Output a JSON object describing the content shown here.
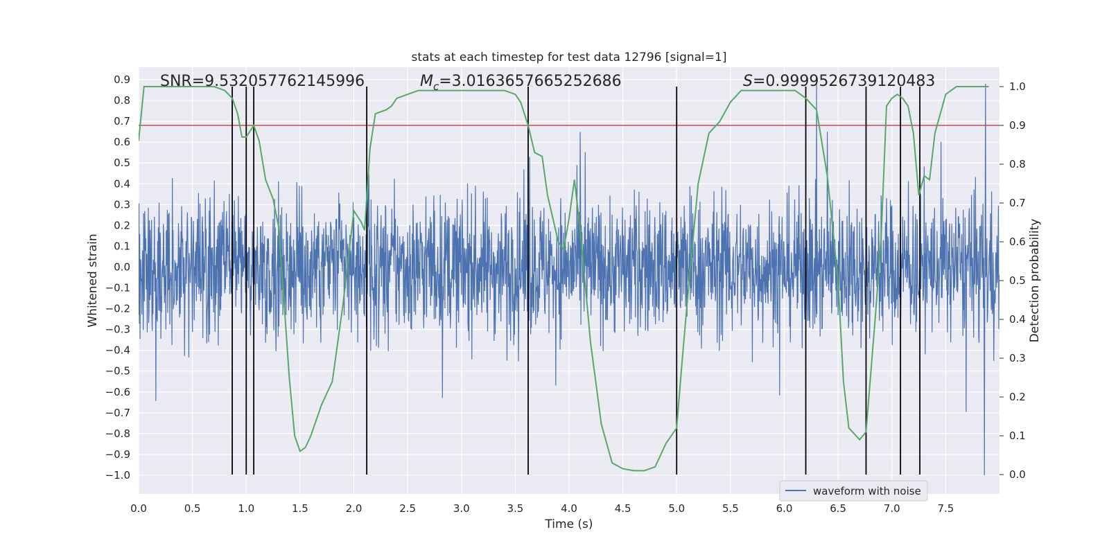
{
  "chart_data": {
    "type": "line",
    "title": "stats at each timestep for test data 12796 [signal=1]",
    "xlabel": "Time (s)",
    "ylabel_left": "Whitened strain",
    "ylabel_right": "Detection probability",
    "xlim": [
      0.0,
      8.0
    ],
    "ylim_left": [
      -1.09,
      0.96
    ],
    "ylim_right": [
      -0.05,
      1.05
    ],
    "x_ticks": [
      0.0,
      0.5,
      1.0,
      1.5,
      2.0,
      2.5,
      3.0,
      3.5,
      4.0,
      4.5,
      5.0,
      5.5,
      6.0,
      6.5,
      7.0,
      7.5
    ],
    "x_tick_labels": [
      "0.0",
      "0.5",
      "1.0",
      "1.5",
      "2.0",
      "2.5",
      "3.0",
      "3.5",
      "4.0",
      "4.5",
      "5.0",
      "5.5",
      "6.0",
      "6.5",
      "7.0",
      "7.5"
    ],
    "y_left_ticks": [
      0.9,
      0.8,
      0.7,
      0.6,
      0.5,
      0.4,
      0.3,
      0.2,
      0.1,
      0.0,
      -0.1,
      -0.2,
      -0.3,
      -0.4,
      -0.5,
      -0.6,
      -0.7,
      -0.8,
      -0.9,
      -1.0
    ],
    "y_left_tick_labels": [
      "0.9",
      "0.8",
      "0.7",
      "0.6",
      "0.5",
      "0.4",
      "0.3",
      "0.2",
      "0.1",
      "0.0",
      "−0.1",
      "−0.2",
      "−0.3",
      "−0.4",
      "−0.5",
      "−0.6",
      "−0.7",
      "−0.8",
      "−0.9",
      "−1.0"
    ],
    "y_right_ticks": [
      1.0,
      0.9,
      0.8,
      0.7,
      0.6,
      0.5,
      0.4,
      0.3,
      0.2,
      0.1,
      0.0
    ],
    "y_right_tick_labels": [
      "1.0",
      "0.9",
      "0.8",
      "0.7",
      "0.6",
      "0.5",
      "0.4",
      "0.3",
      "0.2",
      "0.1",
      "0.0"
    ],
    "annotations": {
      "snr": "SNR=9.532057762145996",
      "mc_symbol": "M",
      "mc_subscript": "c",
      "mc_value": "=3.0163657665252686",
      "s_symbol": "S",
      "s_value": "=0.9999526739120483"
    },
    "legend": {
      "label": "waveform with noise",
      "location": "lower-right"
    },
    "threshold_line": {
      "axis": "right",
      "value": 0.9,
      "color": "#c44e52"
    },
    "vertical_lines": [
      0.87,
      1.0,
      1.07,
      2.12,
      3.62,
      5.0,
      6.2,
      6.76,
      7.08,
      7.26
    ],
    "waveform": {
      "name": "waveform with noise",
      "color": "#4c72b0",
      "duration_s": 8.0,
      "samples": 2400,
      "typical_range": [
        -0.5,
        0.5
      ],
      "max": 0.88,
      "min": -1.0
    },
    "probability_series": {
      "name": "Detection probability",
      "color": "#55a868",
      "x": [
        0.0,
        0.05,
        0.1,
        0.2,
        0.3,
        0.4,
        0.5,
        0.6,
        0.7,
        0.8,
        0.87,
        0.92,
        0.96,
        1.0,
        1.07,
        1.12,
        1.18,
        1.25,
        1.3,
        1.35,
        1.4,
        1.45,
        1.5,
        1.55,
        1.6,
        1.7,
        1.8,
        1.9,
        2.0,
        2.07,
        2.1,
        2.15,
        2.2,
        2.3,
        2.35,
        2.4,
        2.5,
        2.6,
        2.7,
        2.8,
        2.9,
        3.0,
        3.1,
        3.2,
        3.3,
        3.4,
        3.5,
        3.55,
        3.62,
        3.68,
        3.75,
        3.8,
        3.9,
        3.95,
        4.0,
        4.05,
        4.1,
        4.2,
        4.3,
        4.4,
        4.5,
        4.6,
        4.65,
        4.7,
        4.8,
        4.9,
        5.0,
        5.05,
        5.1,
        5.2,
        5.3,
        5.4,
        5.5,
        5.6,
        5.7,
        5.8,
        5.9,
        6.0,
        6.1,
        6.2,
        6.3,
        6.4,
        6.5,
        6.55,
        6.6,
        6.7,
        6.76,
        6.85,
        6.9,
        6.95,
        7.0,
        7.05,
        7.1,
        7.15,
        7.2,
        7.25,
        7.3,
        7.35,
        7.4,
        7.5,
        7.6,
        7.7,
        7.8,
        7.9
      ],
      "y": [
        0.86,
        1.0,
        1.0,
        1.0,
        1.0,
        1.0,
        1.0,
        1.0,
        1.0,
        0.99,
        0.97,
        0.93,
        0.87,
        0.87,
        0.9,
        0.86,
        0.76,
        0.71,
        0.64,
        0.45,
        0.25,
        0.1,
        0.06,
        0.07,
        0.1,
        0.18,
        0.24,
        0.44,
        0.68,
        0.65,
        0.63,
        0.84,
        0.93,
        0.94,
        0.95,
        0.97,
        0.98,
        0.99,
        0.99,
        0.99,
        0.99,
        0.99,
        0.99,
        0.99,
        0.99,
        0.99,
        0.98,
        0.96,
        0.9,
        0.83,
        0.82,
        0.72,
        0.6,
        0.58,
        0.66,
        0.76,
        0.64,
        0.34,
        0.13,
        0.03,
        0.015,
        0.01,
        0.01,
        0.01,
        0.02,
        0.08,
        0.12,
        0.29,
        0.45,
        0.75,
        0.88,
        0.91,
        0.96,
        0.99,
        0.99,
        0.99,
        0.99,
        0.99,
        0.99,
        0.97,
        0.94,
        0.77,
        0.5,
        0.24,
        0.12,
        0.09,
        0.11,
        0.42,
        0.61,
        0.95,
        0.97,
        0.98,
        0.97,
        0.95,
        0.88,
        0.72,
        0.77,
        0.76,
        0.88,
        0.98,
        1.0,
        1.0,
        1.0,
        1.0
      ]
    }
  }
}
